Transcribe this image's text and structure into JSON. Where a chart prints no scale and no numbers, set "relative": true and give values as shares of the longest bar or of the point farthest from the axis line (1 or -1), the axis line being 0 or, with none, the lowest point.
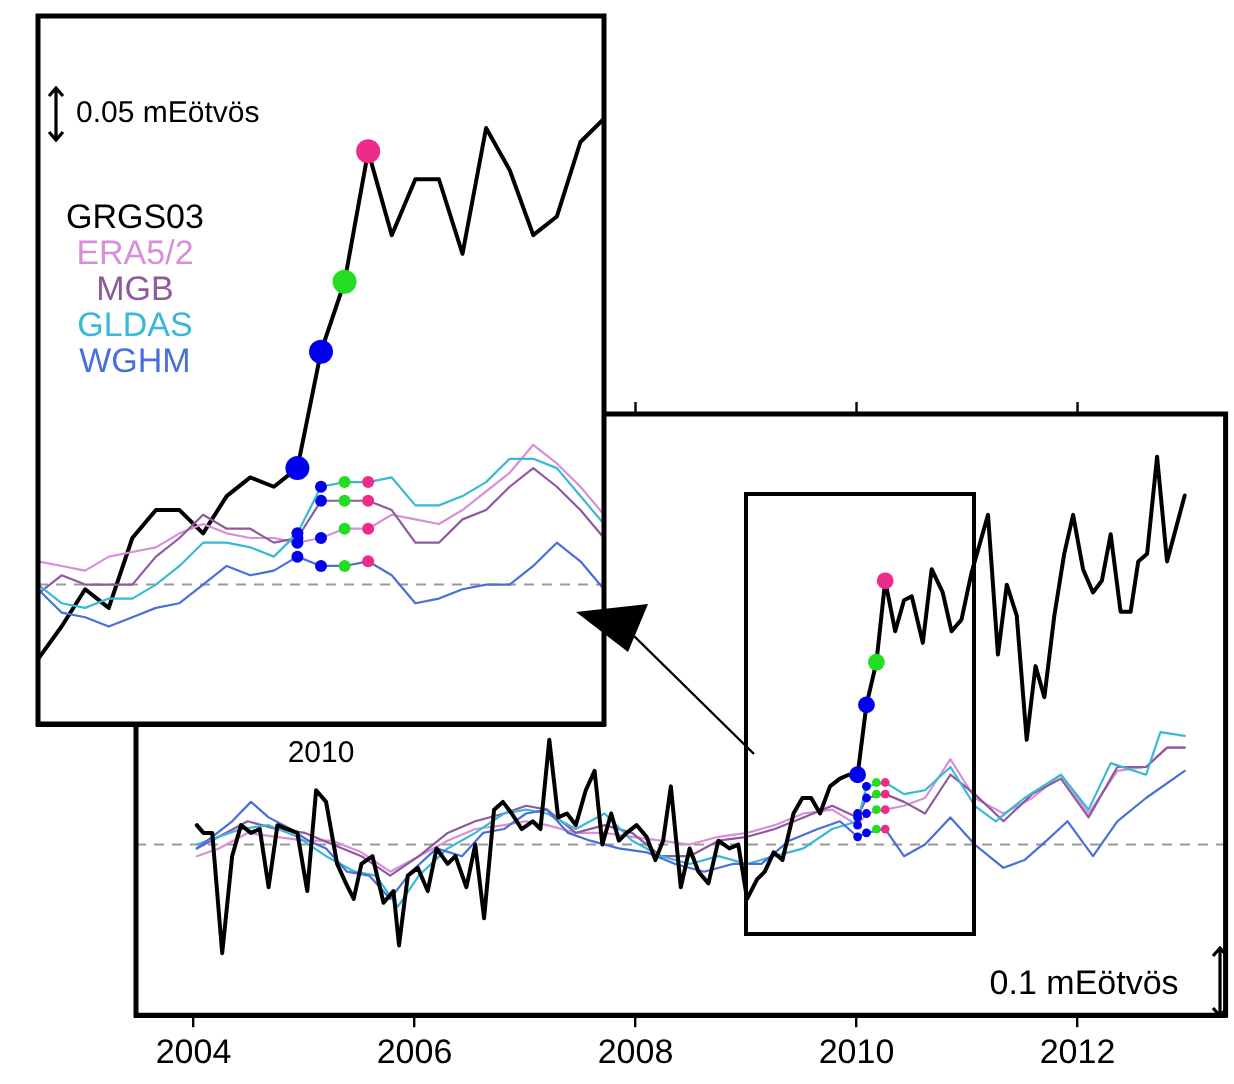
{
  "chart_data": [
    {
      "type": "line",
      "relative": true,
      "marker": "none",
      "grid": false,
      "tick_labels": "x",
      "xlim": [
        2003.48,
        2013.34
      ],
      "xticks": [
        2004,
        2006,
        2008,
        2010,
        2012
      ],
      "annotations": [
        "0.1 mEötvös"
      ],
      "ref_lines": [
        {
          "axis": "y",
          "value": 0,
          "color": "#999999",
          "line_style": "dashed"
        }
      ],
      "series": [
        {
          "color": "#d98fd8",
          "x": [
            2004.03,
            2004.23,
            2004.49,
            2004.75,
            2005.01,
            2005.26,
            2005.52,
            2005.78,
            2006.04,
            2006.3,
            2006.55,
            2006.81,
            2007.01,
            2007.2,
            2007.46,
            2007.72,
            2007.97,
            2008.23,
            2008.49,
            2008.75,
            2009.01,
            2009.26,
            2009.52,
            2009.78,
            2010.01,
            2010.09,
            2010.26,
            2010.43,
            2010.62,
            2010.85,
            2011.07,
            2011.33,
            2011.59,
            2011.85,
            2012.1,
            2012.36,
            2012.62,
            2012.81,
            2012.97
          ],
          "values": [
            -0.03,
            -0.01,
            0.03,
            0.02,
            0.01,
            0.01,
            -0.02,
            -0.07,
            -0.03,
            0.01,
            0.04,
            0.05,
            0.06,
            0.05,
            0.03,
            0.03,
            0.02,
            0.01,
            0,
            0.02,
            0.03,
            0.05,
            0.08,
            0.09,
            0.05,
            0.08,
            0.09,
            0.1,
            0.12,
            0.22,
            0.12,
            0.08,
            0.12,
            0.18,
            0.08,
            0.19,
            0.2,
            0.25,
            0.25
          ]
        },
        {
          "color": "#8e5a9e",
          "x": [
            2004.03,
            2004.23,
            2004.49,
            2004.75,
            2005.01,
            2005.26,
            2005.52,
            2005.78,
            2006.04,
            2006.3,
            2006.55,
            2006.81,
            2007.01,
            2007.2,
            2007.46,
            2007.72,
            2007.97,
            2008.23,
            2008.49,
            2008.75,
            2009.01,
            2009.26,
            2009.52,
            2009.78,
            2010.01,
            2010.09,
            2010.26,
            2010.43,
            2010.62,
            2010.85,
            2011.07,
            2011.33,
            2011.59,
            2011.85,
            2012.1,
            2012.36,
            2012.62,
            2012.81,
            2012.97
          ],
          "values": [
            -0.01,
            0.02,
            0.06,
            0.04,
            0.03,
            0,
            -0.03,
            -0.08,
            -0.03,
            0.03,
            0.06,
            0.08,
            0.1,
            0.09,
            0.03,
            0.05,
            0.03,
            -0.03,
            -0.03,
            0.01,
            0.02,
            0.04,
            0.07,
            0.1,
            0.07,
            0.12,
            0.13,
            0.11,
            0.08,
            0.18,
            0.13,
            0.06,
            0.13,
            0.17,
            0.07,
            0.2,
            0.2,
            0.25,
            0.25
          ]
        },
        {
          "color": "#3ab9d6",
          "x": [
            2004.03,
            2004.23,
            2004.43,
            2004.68,
            2004.94,
            2005.2,
            2005.46,
            2005.65,
            2005.85,
            2006.04,
            2006.3,
            2006.55,
            2006.81,
            2007.01,
            2007.2,
            2007.46,
            2007.72,
            2007.97,
            2008.23,
            2008.49,
            2008.75,
            2009.01,
            2009.26,
            2009.52,
            2009.78,
            2010.01,
            2010.09,
            2010.26,
            2010.43,
            2010.62,
            2010.85,
            2011.07,
            2011.26,
            2011.52,
            2011.85,
            2012.1,
            2012.3,
            2012.62,
            2012.75,
            2012.97
          ],
          "values": [
            0,
            0.02,
            0.04,
            0.05,
            0.02,
            -0.03,
            -0.07,
            -0.08,
            -0.16,
            -0.08,
            -0.01,
            0.03,
            0.08,
            0.09,
            0.08,
            0.04,
            0.08,
            0.01,
            -0.03,
            -0.05,
            -0.03,
            -0.05,
            -0.03,
            -0.01,
            0.04,
            0.06,
            0.15,
            0.16,
            0.13,
            0.14,
            0.2,
            0.1,
            0.06,
            0.12,
            0.18,
            0.09,
            0.21,
            0.18,
            0.29,
            0.28
          ]
        },
        {
          "color": "#4a6fd8",
          "x": [
            2004.03,
            2004.17,
            2004.35,
            2004.52,
            2004.68,
            2004.88,
            2005.04,
            2005.2,
            2005.39,
            2005.59,
            2005.78,
            2005.97,
            2006.2,
            2006.43,
            2006.62,
            2006.81,
            2007.01,
            2007.2,
            2007.39,
            2007.59,
            2007.85,
            2008.1,
            2008.36,
            2008.62,
            2008.88,
            2009.14,
            2009.39,
            2009.65,
            2009.85,
            2010.01,
            2010.09,
            2010.26,
            2010.43,
            2010.62,
            2010.85,
            2011.07,
            2011.33,
            2011.52,
            2011.72,
            2011.91,
            2012.14,
            2012.36,
            2012.62,
            2012.97
          ],
          "values": [
            -0.01,
            0.02,
            0.06,
            0.11,
            0.07,
            0.04,
            0.01,
            -0.01,
            -0.07,
            -0.08,
            -0.14,
            -0.07,
            -0.01,
            -0.03,
            0.03,
            0.04,
            0.08,
            0.09,
            0.03,
            0.01,
            -0.01,
            -0.02,
            -0.05,
            -0.07,
            -0.05,
            -0.05,
            0.01,
            0.04,
            0.06,
            0.02,
            0.03,
            0.04,
            -0.03,
            0,
            0.07,
            0,
            -0.06,
            -0.04,
            0.01,
            0.06,
            -0.03,
            0.06,
            0.12,
            0.19
          ]
        },
        {
          "color": "#000000",
          "x": [
            2004.03,
            2004.09,
            2004.17,
            2004.26,
            2004.35,
            2004.43,
            2004.52,
            2004.6,
            2004.68,
            2004.76,
            2004.85,
            2004.94,
            2005.03,
            2005.11,
            2005.2,
            2005.3,
            2005.38,
            2005.45,
            2005.52,
            2005.62,
            2005.72,
            2005.81,
            2005.86,
            2005.94,
            2006.03,
            2006.12,
            2006.2,
            2006.3,
            2006.37,
            2006.47,
            2006.55,
            2006.63,
            2006.72,
            2006.8,
            2006.88,
            2006.97,
            2007.07,
            2007.14,
            2007.22,
            2007.3,
            2007.38,
            2007.46,
            2007.55,
            2007.63,
            2007.7,
            2007.78,
            2007.85,
            2007.92,
            2008.01,
            2008.1,
            2008.18,
            2008.25,
            2008.32,
            2008.41,
            2008.49,
            2008.57,
            2008.66,
            2008.75,
            2008.85,
            2008.93,
            2009.01,
            2009.1,
            2009.17,
            2009.25,
            2009.33,
            2009.43,
            2009.51,
            2009.59,
            2009.67,
            2009.76,
            2009.85,
            2009.93,
            2010.01,
            2010.09,
            2010.18,
            2010.26,
            2010.35,
            2010.43,
            2010.5,
            2010.6,
            2010.68,
            2010.78,
            2010.86,
            2010.95,
            2011.04,
            2011.19,
            2011.28,
            2011.36,
            2011.45,
            2011.54,
            2011.62,
            2011.7,
            2011.79,
            2011.88,
            2011.96,
            2012.05,
            2012.14,
            2012.22,
            2012.3,
            2012.39,
            2012.48,
            2012.55,
            2012.63,
            2012.72,
            2012.81,
            2012.97
          ],
          "values": [
            0.05,
            0.03,
            0.03,
            -0.28,
            -0.03,
            0.05,
            0.03,
            0.04,
            -0.11,
            0.05,
            0.04,
            0.03,
            -0.12,
            0.14,
            0.11,
            -0.05,
            -0.1,
            -0.14,
            -0.05,
            -0.03,
            -0.15,
            -0.12,
            -0.26,
            -0.08,
            -0.06,
            -0.12,
            -0.01,
            -0.05,
            -0.03,
            -0.11,
            0,
            -0.19,
            0.09,
            0.11,
            0.08,
            0.04,
            0.06,
            0.04,
            0.27,
            0.07,
            0.08,
            0.05,
            0.14,
            0.19,
            0,
            0.08,
            0.01,
            0.03,
            0.05,
            0.02,
            -0.04,
            0.01,
            0.15,
            -0.11,
            -0.01,
            -0.07,
            -0.1,
            0.01,
            -0.01,
            0,
            -0.14,
            -0.09,
            -0.07,
            -0.02,
            -0.04,
            0.08,
            0.12,
            0.12,
            0.08,
            0.15,
            0.17,
            0.18,
            0.18,
            0.36,
            0.47,
            0.68,
            0.55,
            0.63,
            0.64,
            0.52,
            0.71,
            0.65,
            0.55,
            0.58,
            0.7,
            0.85,
            0.49,
            0.67,
            0.59,
            0.27,
            0.46,
            0.38,
            0.59,
            0.75,
            0.85,
            0.71,
            0.65,
            0.68,
            0.8,
            0.6,
            0.6,
            0.73,
            0.75,
            1,
            0.73,
            0.9
          ]
        },
        {
          "type": "scatter",
          "marker": "circle",
          "x": [
            2010.01,
            2010.01,
            2010.01,
            2010.01,
            2010.09,
            2010.09,
            2010.09,
            2010.09,
            2010.18,
            2010.18,
            2010.18,
            2010.18,
            2010.26,
            2010.26,
            2010.26,
            2010.26
          ],
          "values": [
            0.08,
            0.07,
            0.05,
            0.02,
            0.15,
            0.12,
            0.08,
            0.03,
            0.16,
            0.13,
            0.09,
            0.04,
            0.16,
            0.13,
            0.09,
            0.04
          ],
          "colors": [
            "#0000ee",
            "#0000ee",
            "#0000ee",
            "#0000ee",
            "#0000ee",
            "#0000ee",
            "#0000ee",
            "#0000ee",
            "#22dd22",
            "#22dd22",
            "#22dd22",
            "#22dd22",
            "#ee2a8a",
            "#ee2a8a",
            "#ee2a8a",
            "#ee2a8a"
          ]
        },
        {
          "type": "scatter",
          "marker": "circle",
          "x": [
            2010.01,
            2010.09,
            2010.18,
            2010.26
          ],
          "values": [
            0.18,
            0.36,
            0.47,
            0.68
          ],
          "colors": [
            "#0000ee",
            "#0000ee",
            "#22dd22",
            "#ee2a8a"
          ]
        }
      ]
    },
    {
      "type": "line",
      "relative": true,
      "marker": "none",
      "grid": false,
      "tick_labels": false,
      "categories": [
        null,
        null,
        null,
        null,
        null,
        null,
        null,
        null,
        null,
        null,
        null,
        null,
        null,
        null,
        null,
        null,
        null,
        null,
        null,
        null,
        null,
        null,
        null,
        null,
        null
      ],
      "annotations": [
        "0.05 mEötvös",
        "2010"
      ],
      "ref_lines": [
        {
          "axis": "y",
          "value": 0,
          "color": "#999999",
          "line_style": "dashed"
        }
      ],
      "series": [
        {
          "name": "GRGS03",
          "color": "#000000",
          "values": [
            -0.16,
            -0.09,
            -0.01,
            -0.05,
            0.1,
            0.16,
            0.16,
            0.11,
            0.19,
            0.23,
            0.21,
            0.25,
            0.5,
            0.65,
            0.93,
            0.75,
            0.87,
            0.87,
            0.71,
            0.98,
            0.89,
            0.75,
            0.79,
            0.95,
            1
          ],
          "colors": [
            null,
            null,
            null,
            null,
            null,
            null,
            null,
            null,
            null,
            null,
            null,
            "#0000ee",
            "#0000ee",
            "#22dd22",
            "#ee2a8a",
            null,
            null,
            null,
            null,
            null,
            null,
            null,
            null,
            null,
            null
          ]
        },
        {
          "name": "ERA5/2",
          "color": "#d98fd8",
          "values": [
            0.05,
            0.04,
            0.03,
            0.06,
            0.07,
            0.08,
            0.11,
            0.13,
            0.11,
            0.1,
            0.1,
            0.09,
            0.1,
            0.12,
            0.12,
            0.15,
            0.14,
            0.13,
            0.16,
            0.2,
            0.24,
            0.3,
            0.26,
            0.21,
            0.15
          ],
          "colors": [
            null,
            null,
            null,
            null,
            null,
            null,
            null,
            null,
            null,
            null,
            null,
            "#0000ee",
            "#0000ee",
            "#22dd22",
            "#ee2a8a",
            null,
            null,
            null,
            null,
            null,
            null,
            null,
            null,
            null,
            null
          ]
        },
        {
          "name": "MGB",
          "color": "#8e5a9e",
          "values": [
            -0.02,
            0.02,
            0,
            0,
            0,
            0.06,
            0.1,
            0.15,
            0.12,
            0.12,
            0.09,
            0.1,
            0.18,
            0.18,
            0.18,
            0.16,
            0.09,
            0.09,
            0.14,
            0.16,
            0.21,
            0.25,
            0.21,
            0.16,
            0.1
          ],
          "colors": [
            null,
            null,
            null,
            null,
            null,
            null,
            null,
            null,
            null,
            null,
            null,
            "#0000ee",
            "#0000ee",
            "#22dd22",
            "#ee2a8a",
            null,
            null,
            null,
            null,
            null,
            null,
            null,
            null,
            null,
            null
          ]
        },
        {
          "name": "GLDAS",
          "color": "#3ab9d6",
          "values": [
            0,
            -0.04,
            -0.05,
            -0.03,
            -0.03,
            0,
            0.04,
            0.09,
            0.09,
            0.08,
            0.06,
            0.11,
            0.21,
            0.22,
            0.22,
            0.23,
            0.17,
            0.17,
            0.19,
            0.22,
            0.27,
            0.27,
            0.25,
            0.19,
            0.13
          ],
          "colors": [
            null,
            null,
            null,
            null,
            null,
            null,
            null,
            null,
            null,
            null,
            null,
            "#0000ee",
            "#0000ee",
            "#22dd22",
            "#ee2a8a",
            null,
            null,
            null,
            null,
            null,
            null,
            null,
            null,
            null,
            null
          ]
        },
        {
          "name": "WGHM",
          "color": "#4a6fd8",
          "values": [
            -0.01,
            -0.06,
            -0.07,
            -0.09,
            -0.07,
            -0.05,
            -0.04,
            0,
            0.04,
            0.02,
            0.03,
            0.06,
            0.04,
            0.04,
            0.05,
            0.02,
            -0.04,
            -0.03,
            -0.01,
            0,
            0,
            0.04,
            0.09,
            0.05,
            -0.01
          ],
          "colors": [
            null,
            null,
            null,
            null,
            null,
            null,
            null,
            null,
            null,
            null,
            null,
            "#0000ee",
            "#0000ee",
            "#22dd22",
            "#ee2a8a",
            null,
            null,
            null,
            null,
            null,
            null,
            null,
            null,
            null,
            null
          ]
        }
      ]
    }
  ]
}
